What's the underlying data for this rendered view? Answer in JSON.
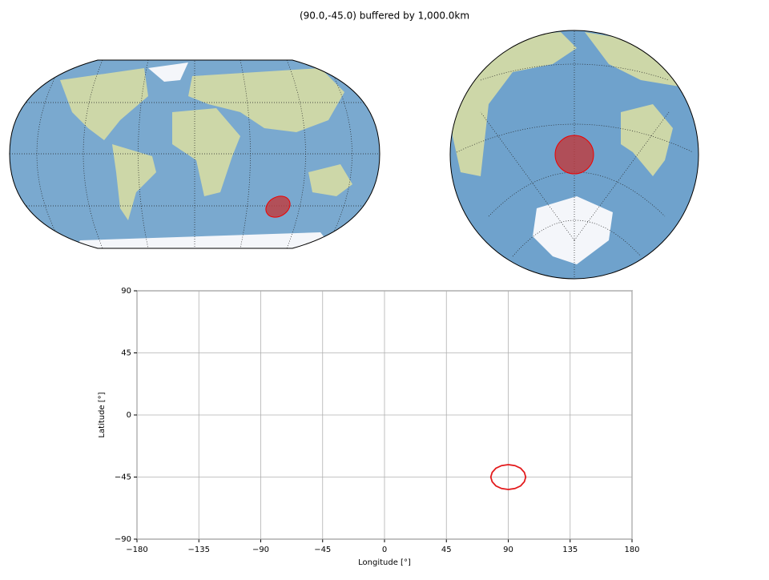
{
  "chart_data": {
    "type": "line",
    "title": "(90.0,-45.0) buffered by 1,000.0km",
    "xlabel": "Longitude [°]",
    "ylabel": "Latitude [°]",
    "x": [
      90,
      94.9,
      99.0,
      101.7,
      102.7,
      101.7,
      99.0,
      94.9,
      90,
      85.1,
      81.0,
      78.3,
      77.3,
      78.3,
      81.0,
      85.1,
      90
    ],
    "values": [
      -36,
      -36.7,
      -38.6,
      -41.6,
      -45,
      -48.4,
      -51.4,
      -53.3,
      -54,
      -53.3,
      -51.4,
      -48.4,
      -45,
      -41.6,
      -38.6,
      -36.7,
      -36
    ],
    "color": "#e31a1c",
    "xlim": [
      -180,
      180
    ],
    "xticks": [
      {
        "value": -180,
        "label": "−180"
      },
      {
        "value": -135,
        "label": "−135"
      },
      {
        "value": -90,
        "label": "−90"
      },
      {
        "value": -45,
        "label": "−45"
      },
      0,
      45,
      90,
      135,
      180
    ],
    "ylim": [
      -90,
      90
    ],
    "yticks": [
      {
        "value": -90,
        "label": "−90"
      },
      {
        "value": -45,
        "label": "−45"
      },
      0,
      45,
      90
    ],
    "grid": true
  }
}
